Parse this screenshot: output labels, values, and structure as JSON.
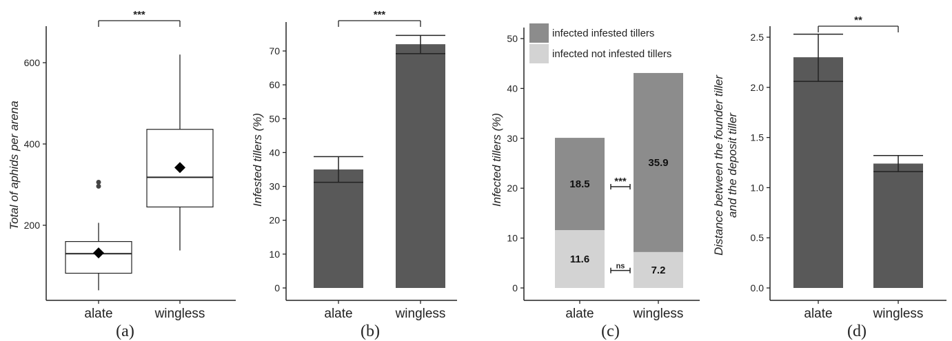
{
  "colors": {
    "bar": "#595959",
    "infested": "#8c8c8c",
    "not_infested": "#d3d3d3",
    "axis": "#222222"
  },
  "chart_data": [
    {
      "panel": "(a)",
      "type": "box",
      "categories": [
        "alate",
        "wingless"
      ],
      "ylabel": "Total of aphids per arena",
      "ylim": [
        0,
        680
      ],
      "yticks": [
        200,
        400,
        600
      ],
      "boxes": [
        {
          "category": "alate",
          "whisker_low": 40,
          "q1": 82,
          "median": 130,
          "q3": 160,
          "whisker_high": 206,
          "mean": 132,
          "outliers": [
            296,
            306
          ]
        },
        {
          "category": "wingless",
          "whisker_low": 138,
          "q1": 245,
          "median": 318,
          "q3": 436,
          "whisker_high": 620,
          "mean": 342,
          "outliers": []
        }
      ],
      "significance": "***"
    },
    {
      "panel": "(b)",
      "type": "bar",
      "categories": [
        "alate",
        "wingless"
      ],
      "values": [
        35,
        72
      ],
      "error_low": [
        31.2,
        69.2
      ],
      "error_high": [
        38.8,
        74.6
      ],
      "ylabel": "Infested tillers (%)",
      "ylim": [
        0,
        80
      ],
      "yticks": [
        0,
        10,
        20,
        30,
        40,
        50,
        60,
        70
      ],
      "significance": "***"
    },
    {
      "panel": "(c)",
      "type": "stacked_bar",
      "categories": [
        "alate",
        "wingless"
      ],
      "series": [
        {
          "name": "infected not infested tillers",
          "values": [
            11.6,
            7.2
          ]
        },
        {
          "name": "infected infested tillers",
          "values": [
            18.5,
            35.9
          ]
        }
      ],
      "ylabel": "Infected tillers (%)",
      "ylim": [
        0,
        52
      ],
      "yticks": [
        0,
        10,
        20,
        30,
        40,
        50
      ],
      "comparisons": [
        {
          "label": "***",
          "y": 20.3
        },
        {
          "label": "ns",
          "y": 3.5
        }
      ],
      "legend": "top"
    },
    {
      "panel": "(d)",
      "type": "bar",
      "categories": [
        "alate",
        "wingless"
      ],
      "values": [
        2.3,
        1.24
      ],
      "error_low": [
        2.06,
        1.16
      ],
      "error_high": [
        2.53,
        1.32
      ],
      "ylabel": "Distance between the founder tiller and the deposit tiller",
      "ylabel_lines": [
        "Distance between the founder tiller",
        "and the deposit tiller"
      ],
      "ylim": [
        0,
        2.65
      ],
      "yticks": [
        "0.0",
        "0.5",
        "1.0",
        "1.5",
        "2.0",
        "2.5"
      ],
      "significance": "**"
    }
  ]
}
